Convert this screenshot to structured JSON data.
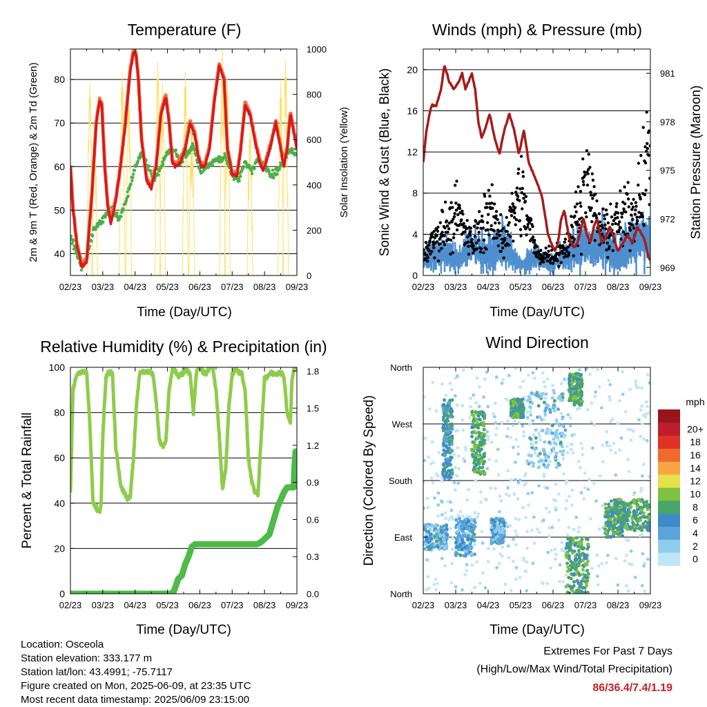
{
  "x_ticks": [
    "02/23",
    "03/23",
    "04/23",
    "05/23",
    "06/23",
    "07/23",
    "08/23",
    "09/23"
  ],
  "x_axis_label": "Time (Day/UTC)",
  "panels": {
    "temperature": {
      "title": "Temperature (F)",
      "left_label": "2m & 9m T (Red, Orange) & 2m Td (Green)",
      "right_label": "Solar Insolation (Yellow)",
      "left_ticks": [
        "40",
        "50",
        "60",
        "70",
        "80"
      ],
      "right_ticks": [
        "0",
        "200",
        "400",
        "600",
        "800",
        "1000"
      ]
    },
    "winds": {
      "title": "Winds (mph) & Pressure (mb)",
      "left_label": "Sonic Wind & Gust (Blue, Black)",
      "right_label": "Station Pressure (Maroon)",
      "left_ticks": [
        "0",
        "4",
        "8",
        "12",
        "16",
        "20"
      ],
      "right_ticks": [
        "969",
        "972",
        "975",
        "978",
        "981"
      ]
    },
    "humidity": {
      "title": "Relative Humidity (%) & Precipitation (in)",
      "left_label": "Percent & Total Rainfall",
      "left_ticks": [
        "0",
        "20",
        "40",
        "60",
        "80",
        "100"
      ],
      "right_ticks": [
        "0.0",
        "0.3",
        "0.6",
        "0.9",
        "1.2",
        "1.5",
        "1.8"
      ]
    },
    "direction": {
      "title": "Wind Direction",
      "left_label": "Direction (Colored By Speed)",
      "left_ticks": [
        "North",
        "East",
        "South",
        "West",
        "North"
      ],
      "legend_title": "mph",
      "legend_labels": [
        "0",
        "2",
        "4",
        "6",
        "8",
        "10",
        "12",
        "14",
        "16",
        "18",
        "20+"
      ]
    }
  },
  "info": {
    "location": "Location: Osceola",
    "elevation": "Station elevation: 333.177 m",
    "latlon": "Station lat/lon: 43.4991; -75.7117",
    "created": "Figure created on Mon, 2025-06-09, at 23:35 UTC",
    "recent": "Most recent data timestamp: 2025/06/09 23:15:00"
  },
  "extremes": {
    "heading": "Extremes For Past 7 Days",
    "subheading": "(High/Low/Max Wind/Total Precipitation)",
    "values": "86/36.4/7.4/1.19"
  },
  "colors": {
    "temp_2m": "#d7191c",
    "temp_9m": "#f46d43",
    "dewpoint": "#4daf4a",
    "insolation": "#ffe066",
    "wind_speed": "#4f8fcf",
    "gust": "#000000",
    "pressure": "#a51c1c",
    "humidity": "#8fcc4c",
    "precip": "#4cbb47",
    "legend": [
      "#bfe6f7",
      "#8fcdee",
      "#5ba5db",
      "#3f8bc7",
      "#4aa56a",
      "#7fc242",
      "#e6e04c",
      "#f9a543",
      "#f06a2d",
      "#e03326",
      "#bf1e2e",
      "#99151c"
    ],
    "extremes_values": "#c62127"
  },
  "chart_data": [
    {
      "type": "line",
      "title": "Temperature (F)",
      "xlabel": "Time (Day/UTC)",
      "ylabel": "2m & 9m T (Red, Orange) & 2m Td (Green)",
      "y2label": "Solar Insolation (Yellow)",
      "xlim": [
        0,
        7
      ],
      "ylim": [
        35,
        87
      ],
      "y2lim": [
        0,
        1000
      ],
      "series": [
        {
          "name": "2m T",
          "axis": "left",
          "x": [
            0,
            0.08,
            0.2,
            0.35,
            0.5,
            0.65,
            0.8,
            0.9,
            0.97,
            1.06,
            1.15,
            1.25,
            1.4,
            1.55,
            1.7,
            1.85,
            1.95,
            2.02,
            2.1,
            2.2,
            2.35,
            2.5,
            2.65,
            2.8,
            2.95,
            3.05,
            3.15,
            3.25,
            3.4,
            3.55,
            3.7,
            3.85,
            3.95,
            4.05,
            4.15,
            4.3,
            4.45,
            4.6,
            4.75,
            4.85,
            5.0,
            5.15,
            5.25,
            5.4,
            5.55,
            5.7,
            5.85,
            5.95,
            6.05,
            6.2,
            6.35,
            6.5,
            6.6,
            6.7,
            6.8,
            6.9,
            7.0
          ],
          "y": [
            60,
            50,
            42,
            37,
            38,
            52,
            70,
            75,
            74,
            60,
            51,
            47,
            52,
            60,
            70,
            82,
            86,
            86,
            80,
            66,
            57,
            55,
            60,
            72,
            76,
            70,
            61,
            60,
            61,
            64,
            70,
            67,
            62,
            60,
            60,
            64,
            75,
            83,
            80,
            64,
            58,
            58,
            63,
            74,
            72,
            66,
            61,
            59,
            61,
            65,
            70,
            64,
            60,
            64,
            72,
            68,
            64
          ]
        },
        {
          "name": "2m Td",
          "axis": "left",
          "x": [
            0,
            0.1,
            0.2,
            0.35,
            0.5,
            0.7,
            0.9,
            1.1,
            1.3,
            1.5,
            1.7,
            1.9,
            2.1,
            2.25,
            2.4,
            2.6,
            2.8,
            3.0,
            3.2,
            3.4,
            3.6,
            3.8,
            4.0,
            4.2,
            4.4,
            4.6,
            4.8,
            5.0,
            5.2,
            5.4,
            5.6,
            5.8,
            6.0,
            6.2,
            6.4,
            6.6,
            6.8,
            7.0
          ],
          "y": [
            44,
            42,
            40,
            37,
            39,
            45,
            47,
            49,
            50,
            48,
            52,
            57,
            62,
            63,
            60,
            57,
            60,
            63,
            64,
            61,
            63,
            65,
            59,
            60,
            61,
            62,
            62,
            58,
            57,
            61,
            59,
            62,
            60,
            58,
            59,
            62,
            64,
            63
          ]
        },
        {
          "name": "Solar Insolation",
          "axis": "right",
          "peaks_x": [
            0.6,
            0.75,
            1.6,
            1.8,
            2.7,
            2.85,
            3.55,
            3.75,
            4.7,
            4.85,
            5.55,
            6.5,
            6.65
          ],
          "peaks_y": [
            850,
            620,
            900,
            800,
            940,
            850,
            900,
            700,
            1000,
            870,
            650,
            850,
            950
          ]
        }
      ]
    },
    {
      "type": "line",
      "title": "Winds (mph) & Pressure (mb)",
      "xlabel": "Time (Day/UTC)",
      "ylabel": "Sonic Wind & Gust (Blue, Black)",
      "y2label": "Station Pressure (Maroon)",
      "xlim": [
        0,
        7
      ],
      "ylim": [
        0,
        22
      ],
      "y2lim": [
        968.5,
        982.5
      ],
      "series": [
        {
          "name": "Station Pressure",
          "axis": "right",
          "x": [
            0,
            0.1,
            0.25,
            0.4,
            0.55,
            0.65,
            0.8,
            0.95,
            1.1,
            1.2,
            1.3,
            1.4,
            1.5,
            1.6,
            1.7,
            1.8,
            1.9,
            2.05,
            2.2,
            2.35,
            2.5,
            2.65,
            2.8,
            2.95,
            3.1,
            3.25,
            3.45,
            3.65,
            3.85,
            3.95,
            4.05,
            4.15,
            4.25,
            4.35,
            4.5,
            4.65,
            4.75,
            4.85,
            4.95,
            5.05,
            5.15,
            5.25,
            5.35,
            5.5,
            5.65,
            5.75,
            5.85,
            6.0,
            6.15,
            6.3,
            6.45,
            6.6,
            6.75,
            6.85,
            6.95,
            7.0
          ],
          "y": [
            975.5,
            977.5,
            979,
            979,
            980,
            981.5,
            980.5,
            980,
            980.5,
            981,
            980,
            980.5,
            981,
            980,
            978,
            977,
            977.5,
            978.5,
            977,
            976,
            977.5,
            978.5,
            977.5,
            976,
            977.5,
            975.5,
            974.5,
            973.5,
            971,
            970.5,
            970,
            970.5,
            972,
            972.5,
            970.8,
            970.2,
            970.5,
            971.3,
            972,
            971,
            970.5,
            971.5,
            972,
            970.5,
            971,
            971.5,
            971,
            970,
            970.5,
            971,
            970.5,
            971.5,
            971,
            970.5,
            969.5,
            969.5
          ]
        },
        {
          "name": "Sonic Wind",
          "axis": "left",
          "mean_x": [
            0,
            0.5,
            1.0,
            1.5,
            2.0,
            2.5,
            3.0,
            3.5,
            4.0,
            4.5,
            5.0,
            5.5,
            6.0,
            6.5,
            7.0
          ],
          "mean_y": [
            1.5,
            2,
            1.5,
            2.5,
            2,
            2.5,
            1,
            1.5,
            1,
            2,
            2.5,
            3,
            2,
            3,
            3.5
          ]
        },
        {
          "name": "Gust",
          "axis": "left",
          "mean_x": [
            0,
            0.5,
            1.0,
            1.5,
            2.0,
            2.5,
            3.0,
            3.5,
            4.0,
            4.5,
            5.0,
            5.5,
            6.0,
            6.5,
            7.0
          ],
          "mean_y": [
            2,
            4,
            6,
            3,
            6,
            3.5,
            8,
            2,
            2,
            3,
            9,
            4,
            5,
            6,
            12
          ]
        }
      ]
    },
    {
      "type": "line",
      "title": "Relative Humidity (%) & Precipitation (in)",
      "xlabel": "Time (Day/UTC)",
      "ylabel": "Percent & Total Rainfall",
      "xlim": [
        0,
        7
      ],
      "ylim": [
        0,
        100
      ],
      "y2lim": [
        0,
        1.83
      ],
      "series": [
        {
          "name": "Relative Humidity",
          "axis": "left",
          "x": [
            0,
            0.08,
            0.2,
            0.35,
            0.5,
            0.6,
            0.7,
            0.8,
            0.9,
            0.95,
            1.0,
            1.1,
            1.2,
            1.3,
            1.4,
            1.55,
            1.65,
            1.75,
            1.85,
            1.95,
            2.05,
            2.15,
            2.25,
            2.4,
            2.55,
            2.65,
            2.75,
            2.85,
            2.95,
            3.05,
            3.15,
            3.25,
            3.35,
            3.5,
            3.6,
            3.7,
            3.8,
            3.9,
            4.0,
            4.1,
            4.2,
            4.3,
            4.4,
            4.5,
            4.6,
            4.7,
            4.8,
            4.9,
            5.0,
            5.1,
            5.2,
            5.3,
            5.4,
            5.5,
            5.6,
            5.7,
            5.8,
            5.9,
            6.0,
            6.1,
            6.2,
            6.3,
            6.4,
            6.5,
            6.6,
            6.7,
            6.8,
            6.85,
            6.92,
            7.0
          ],
          "y": [
            45,
            90,
            97,
            98,
            98,
            75,
            40,
            38,
            36,
            40,
            70,
            96,
            98,
            97,
            65,
            48,
            45,
            42,
            43,
            60,
            85,
            98,
            98,
            98,
            97,
            85,
            68,
            65,
            67,
            90,
            99,
            98,
            96,
            98,
            99,
            97,
            80,
            99,
            100,
            98,
            97,
            100,
            100,
            90,
            70,
            46,
            55,
            83,
            97,
            99,
            98,
            97,
            90,
            60,
            50,
            45,
            44,
            70,
            95,
            96,
            98,
            97,
            97,
            98,
            96,
            80,
            76,
            95,
            99,
            100
          ]
        },
        {
          "name": "Total Precipitation",
          "axis": "right",
          "x": [
            0,
            2.15,
            3.1,
            3.2,
            3.33,
            3.45,
            3.55,
            3.65,
            3.75,
            3.85,
            4.1,
            4.5,
            4.9,
            5.1,
            5.3,
            5.6,
            5.75,
            5.85,
            5.95,
            6.15,
            6.4,
            6.6,
            6.7,
            6.82,
            6.86,
            6.9,
            6.92,
            6.96,
            7.0
          ],
          "y": [
            0,
            0,
            0,
            0.02,
            0.12,
            0.15,
            0.24,
            0.3,
            0.38,
            0.4,
            0.4,
            0.4,
            0.4,
            0.4,
            0.4,
            0.4,
            0.4,
            0.41,
            0.43,
            0.48,
            0.7,
            0.82,
            0.86,
            0.86,
            0.86,
            0.86,
            1.0,
            1.15,
            1.15
          ]
        }
      ]
    },
    {
      "type": "scatter",
      "title": "Wind Direction",
      "xlabel": "Time (Day/UTC)",
      "ylabel": "Direction (Colored By Speed)",
      "xlim": [
        0,
        7
      ],
      "ylim": [
        0,
        360
      ],
      "y_categories": [
        "North",
        "East",
        "South",
        "West",
        "North"
      ],
      "colorbar": {
        "label": "mph",
        "levels": [
          "0",
          "2",
          "4",
          "6",
          "8",
          "10",
          "12",
          "14",
          "16",
          "18",
          "20+"
        ]
      },
      "clusters": [
        {
          "x": [
            0.0,
            0.75
          ],
          "direction": [
            70,
            110
          ],
          "speed": 2
        },
        {
          "x": [
            0.6,
            0.9
          ],
          "direction": [
            180,
            310
          ],
          "speed": 3
        },
        {
          "x": [
            1.0,
            1.6
          ],
          "direction": [
            60,
            120
          ],
          "speed": 2
        },
        {
          "x": [
            1.5,
            1.9
          ],
          "direction": [
            190,
            290
          ],
          "speed": 4
        },
        {
          "x": [
            2.1,
            2.5
          ],
          "direction": [
            80,
            120
          ],
          "speed": 2
        },
        {
          "x": [
            2.7,
            3.1
          ],
          "direction": [
            280,
            310
          ],
          "speed": 4
        },
        {
          "x": [
            3.2,
            4.4
          ],
          "direction": [
            200,
            320
          ],
          "speed": 1
        },
        {
          "x": [
            4.5,
            4.9
          ],
          "direction": [
            300,
            350
          ],
          "speed": 4
        },
        {
          "x": [
            4.4,
            5.1
          ],
          "direction": [
            0,
            90
          ],
          "speed": 4
        },
        {
          "x": [
            5.6,
            6.2
          ],
          "direction": [
            90,
            150
          ],
          "speed": 4
        },
        {
          "x": [
            6.0,
            7.0
          ],
          "direction": [
            100,
            150
          ],
          "speed": 4
        }
      ]
    }
  ]
}
